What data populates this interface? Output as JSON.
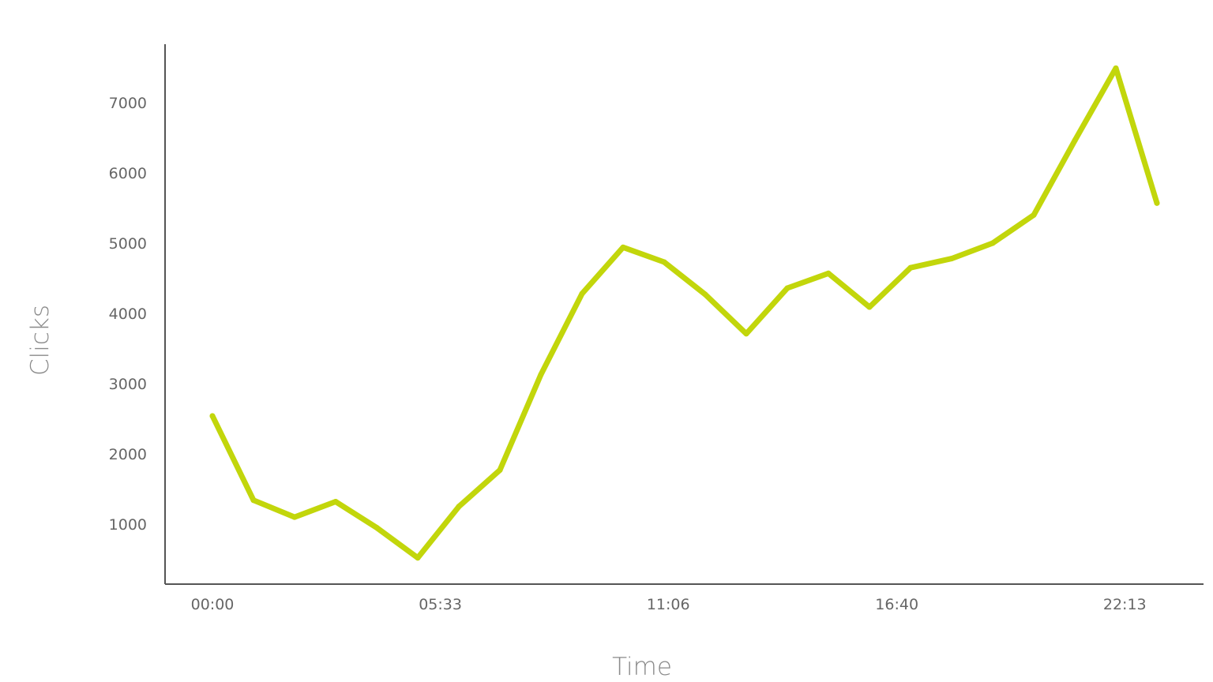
{
  "chart_data": {
    "type": "line",
    "title": "",
    "xlabel": "Time",
    "ylabel": "Clicks",
    "x_tick_labels": [
      "00:00",
      "05:33",
      "11:06",
      "16:40",
      "22:13"
    ],
    "y_ticks": [
      1000,
      2000,
      3000,
      4000,
      5000,
      6000,
      7000
    ],
    "ylim": [
      150,
      7820
    ],
    "grid": false,
    "legend": "none",
    "x_step_minutes": 60,
    "series": [
      {
        "color": "#c2d60b",
        "x": [
          "00:00",
          "01:00",
          "02:00",
          "03:00",
          "04:00",
          "05:00",
          "06:00",
          "07:00",
          "08:00",
          "09:00",
          "10:00",
          "11:00",
          "12:00",
          "13:00",
          "14:00",
          "15:00",
          "16:00",
          "17:00",
          "18:00",
          "19:00",
          "20:00",
          "21:00",
          "22:00",
          "23:00"
        ],
        "values": [
          2540,
          1340,
          1100,
          1320,
          950,
          520,
          1250,
          1770,
          3130,
          4280,
          4940,
          4730,
          4270,
          3710,
          4360,
          4570,
          4090,
          4650,
          4780,
          5000,
          5400,
          6460,
          7490,
          5570
        ]
      }
    ]
  }
}
